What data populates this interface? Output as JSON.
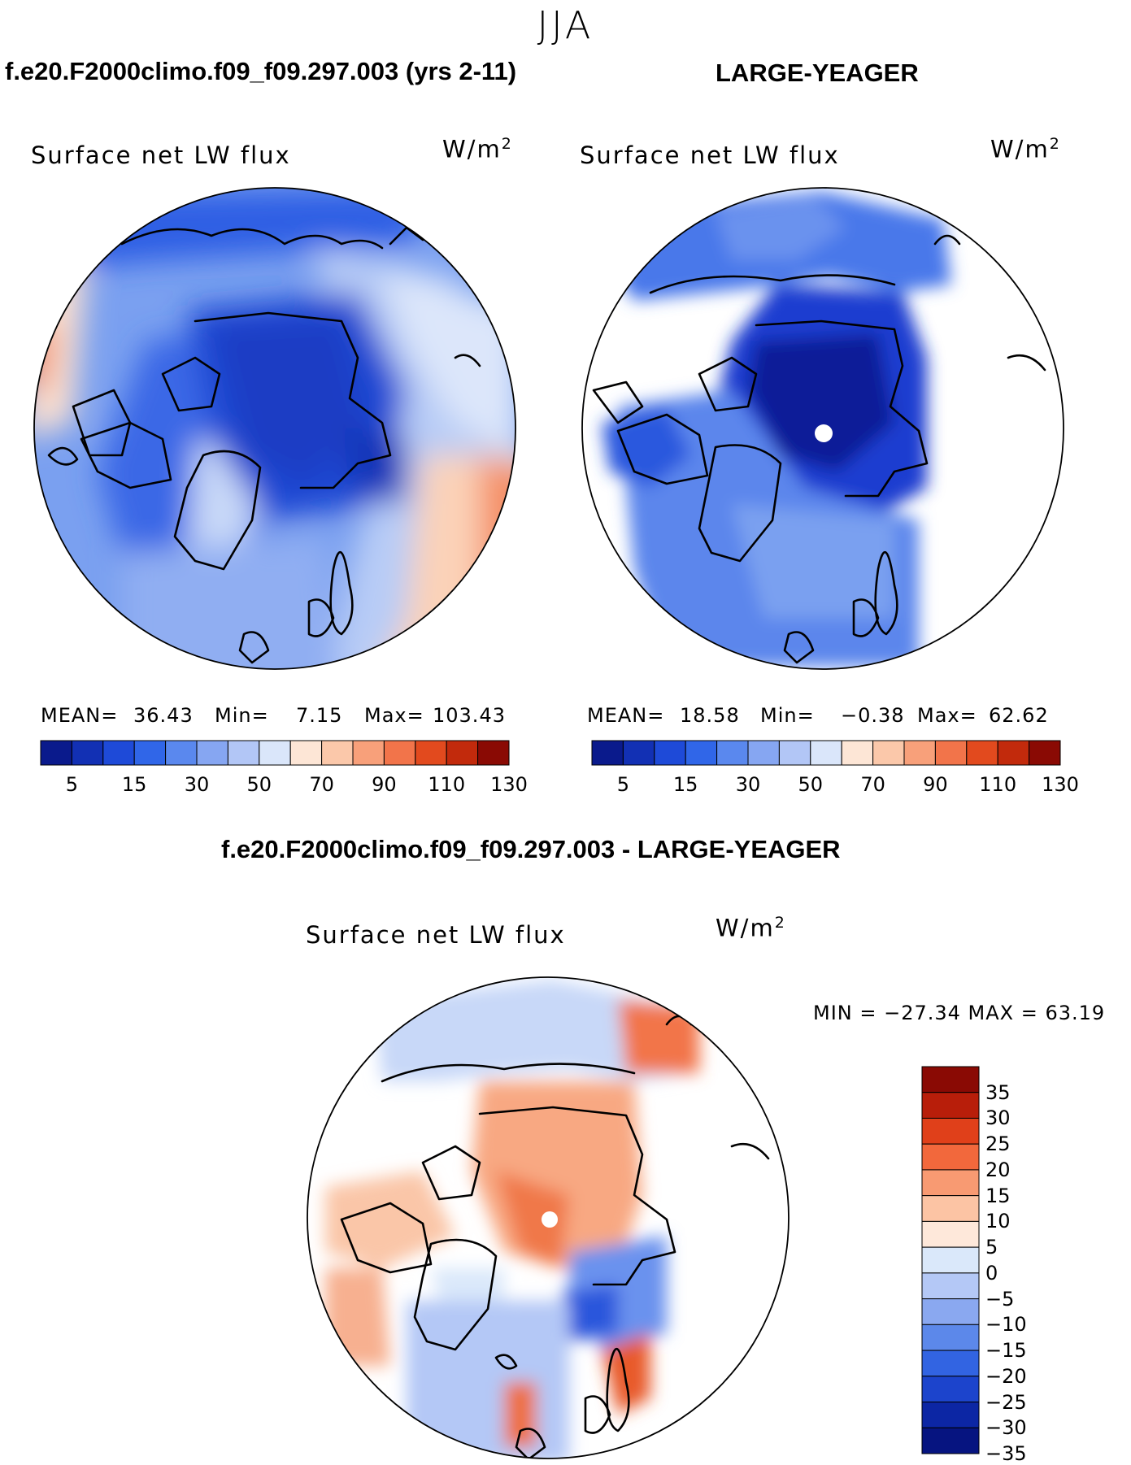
{
  "season": "JJA",
  "panels": {
    "test": {
      "header": "f.e20.F2000climo.f09_f09.297.003 (yrs 2-11)",
      "variable": "Surface net LW flux",
      "units_base": "W/m",
      "units_exp": "2",
      "mean_label": "MEAN=",
      "mean": "36.43",
      "min_label": "Min=",
      "min": "7.15",
      "max_label": "Max=",
      "max": "103.43"
    },
    "obs": {
      "header": "LARGE-YEAGER",
      "variable": "Surface net LW flux",
      "units_base": "W/m",
      "units_exp": "2",
      "mean_label": "MEAN=",
      "mean": "18.58",
      "min_label": "Min=",
      "min": "−0.38",
      "max_label": "Max=",
      "max": "62.62"
    },
    "diff": {
      "header": "f.e20.F2000climo.f09_f09.297.003 - LARGE-YEAGER",
      "variable": "Surface net LW flux",
      "units_base": "W/m",
      "units_exp": "2",
      "minmax": "MIN = −27.34 MAX =   63.19"
    }
  },
  "field_colorbar": {
    "colors": [
      "#0a1a8c",
      "#1230b4",
      "#1e4ad8",
      "#3066e8",
      "#5a88ee",
      "#86a6f2",
      "#b2c6f6",
      "#dae6fa",
      "#fde6d6",
      "#fbc8aa",
      "#f8a07a",
      "#f2744a",
      "#e24a1e",
      "#c22a0c",
      "#8a0a04"
    ],
    "tick_labels": [
      "5",
      "15",
      "30",
      "50",
      "70",
      "90",
      "110",
      "130"
    ]
  },
  "diff_colorbar": {
    "colors": [
      "#8a0a04",
      "#b81e0a",
      "#e0401a",
      "#f2683c",
      "#f89a72",
      "#fcc4a4",
      "#fee8da",
      "#dae8fa",
      "#b4c8f6",
      "#8aa8f0",
      "#5c88ea",
      "#3264e2",
      "#1c44cc",
      "#0c26a4",
      "#061480"
    ],
    "tick_labels": [
      "35",
      "30",
      "25",
      "20",
      "15",
      "10",
      "5",
      "0",
      "−5",
      "−10",
      "−15",
      "−20",
      "−25",
      "−30",
      "−35"
    ]
  }
}
